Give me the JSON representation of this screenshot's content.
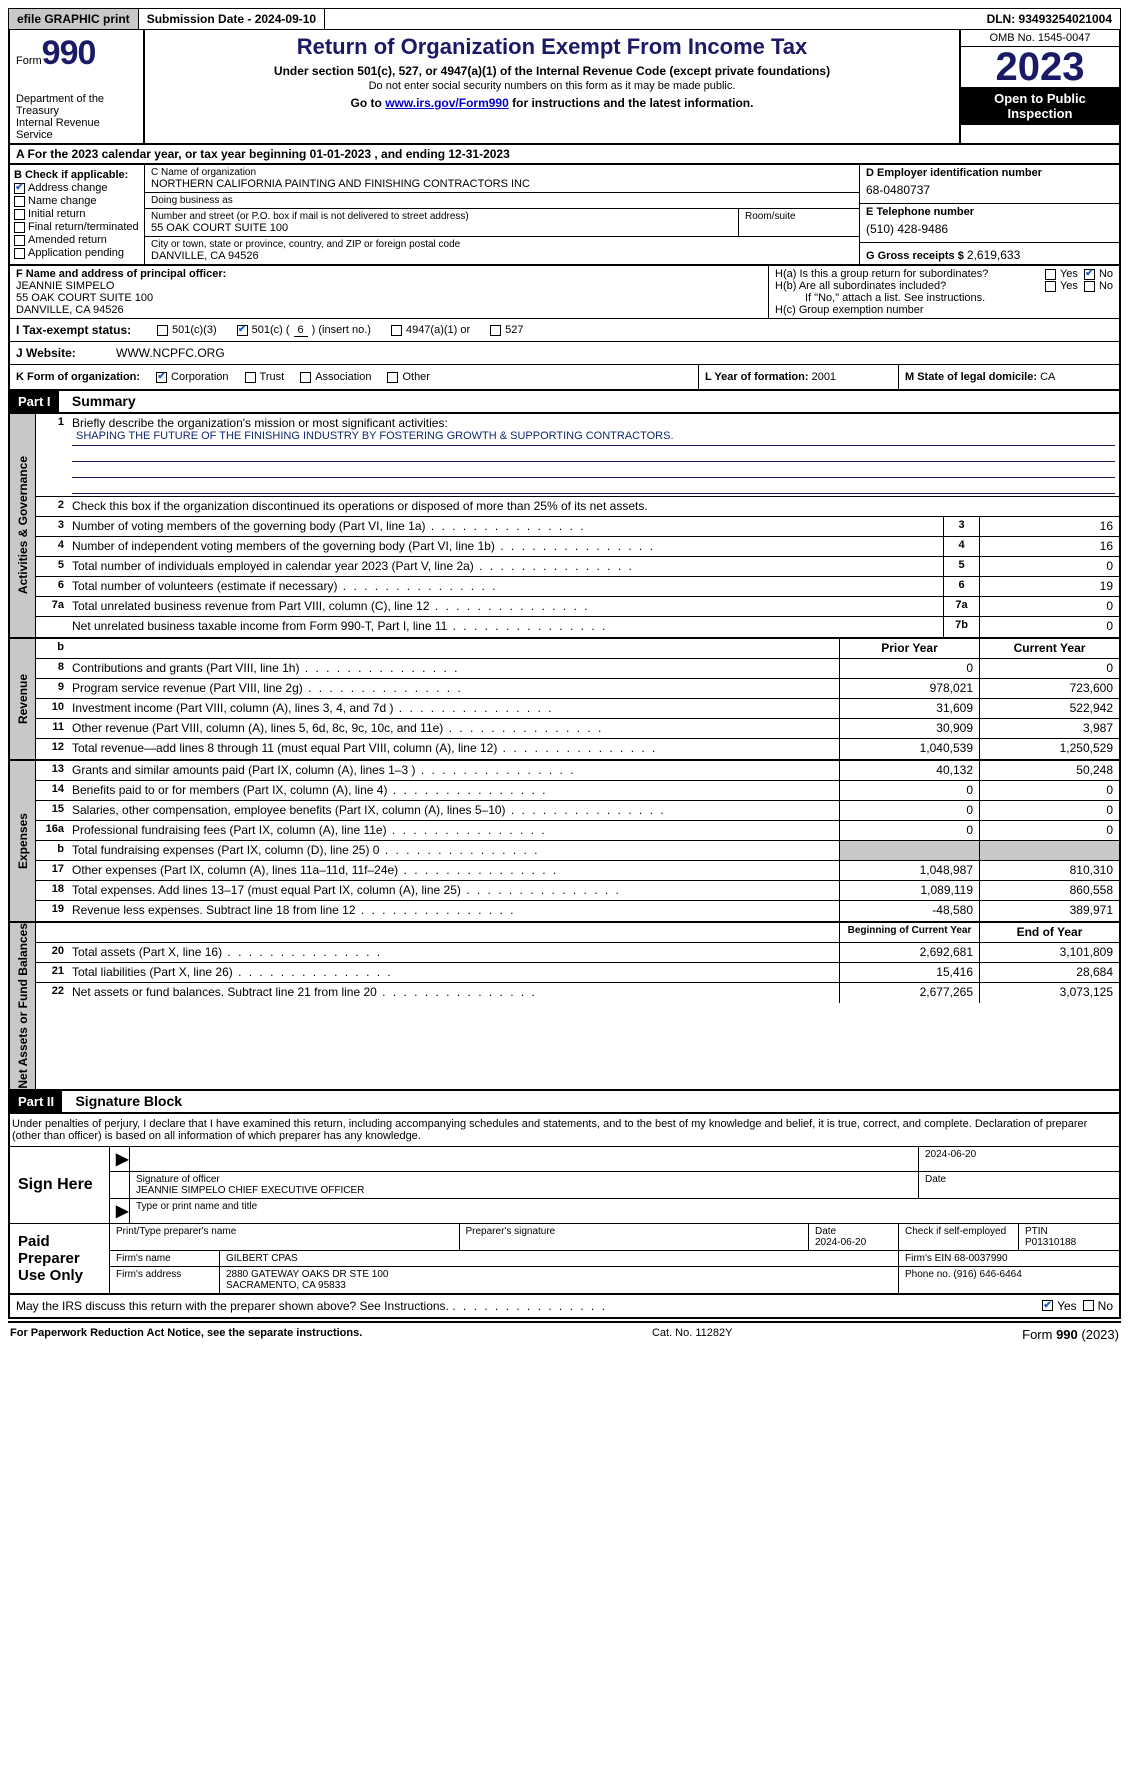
{
  "topbar": {
    "efile": "efile GRAPHIC print",
    "submission_label": "Submission Date - 2024-09-10",
    "dln": "DLN: 93493254021004"
  },
  "header": {
    "form_word": "Form",
    "form_number": "990",
    "dept": "Department of the Treasury",
    "irs": "Internal Revenue Service",
    "title": "Return of Organization Exempt From Income Tax",
    "subtitle": "Under section 501(c), 527, or 4947(a)(1) of the Internal Revenue Code (except private foundations)",
    "ssn_warn": "Do not enter social security numbers on this form as it may be made public.",
    "goto_pre": "Go to ",
    "goto_link": "www.irs.gov/Form990",
    "goto_post": " for instructions and the latest information.",
    "omb": "OMB No. 1545-0047",
    "year": "2023",
    "open": "Open to Public Inspection"
  },
  "rowA": "A  For the 2023 calendar year, or tax year beginning 01-01-2023    , and ending 12-31-2023",
  "boxB": {
    "header": "B Check if applicable:",
    "items": [
      {
        "label": "Address change",
        "checked": true
      },
      {
        "label": "Name change",
        "checked": false
      },
      {
        "label": "Initial return",
        "checked": false
      },
      {
        "label": "Final return/terminated",
        "checked": false
      },
      {
        "label": "Amended return",
        "checked": false
      },
      {
        "label": "Application pending",
        "checked": false
      }
    ]
  },
  "boxC": {
    "name_label": "C Name of organization",
    "name": "NORTHERN CALIFORNIA PAINTING AND FINISHING CONTRACTORS INC",
    "dba_label": "Doing business as",
    "dba": "",
    "street_label": "Number and street (or P.O. box if mail is not delivered to street address)",
    "street": "55 OAK COURT SUITE 100",
    "room_label": "Room/suite",
    "room": "",
    "city_label": "City or town, state or province, country, and ZIP or foreign postal code",
    "city": "DANVILLE, CA  94526"
  },
  "boxD": {
    "label": "D Employer identification number",
    "value": "68-0480737"
  },
  "boxE": {
    "label": "E Telephone number",
    "value": "(510) 428-9486"
  },
  "boxG": {
    "label": "G Gross receipts $",
    "value": "2,619,633"
  },
  "boxF": {
    "label": "F  Name and address of principal officer:",
    "name": "JEANNIE SIMPELO",
    "addr1": "55 OAK COURT SUITE 100",
    "addr2": "DANVILLE, CA  94526"
  },
  "boxH": {
    "a": "H(a)  Is this a group return for subordinates?",
    "b": "H(b)  Are all subordinates included?",
    "b_note": "If \"No,\" attach a list. See instructions.",
    "c": "H(c)  Group exemption number",
    "yes": "Yes",
    "no": "No"
  },
  "rowI": {
    "label": "I   Tax-exempt status:",
    "opt1": "501(c)(3)",
    "opt2_pre": "501(c) (",
    "opt2_num": "6",
    "opt2_post": ") (insert no.)",
    "opt3": "4947(a)(1) or",
    "opt4": "527"
  },
  "rowJ": {
    "label": "J   Website:",
    "value": "WWW.NCPFC.ORG"
  },
  "rowK": {
    "label": "K Form of organization:",
    "opts": [
      "Corporation",
      "Trust",
      "Association",
      "Other"
    ]
  },
  "rowL": {
    "label": "L Year of formation:",
    "value": "2001"
  },
  "rowM": {
    "label": "M State of legal domicile:",
    "value": "CA"
  },
  "part1": {
    "tag": "Part I",
    "title": "Summary"
  },
  "summary": {
    "mission_label": "Briefly describe the organization's mission or most significant activities:",
    "mission": "SHAPING THE FUTURE OF THE FINISHING INDUSTRY BY FOSTERING GROWTH & SUPPORTING CONTRACTORS.",
    "line2": "Check this box      if the organization discontinued its operations or disposed of more than 25% of its net assets.",
    "lines_gov": [
      {
        "n": "3",
        "t": "Number of voting members of the governing body (Part VI, line 1a)",
        "box": "3",
        "v": "16"
      },
      {
        "n": "4",
        "t": "Number of independent voting members of the governing body (Part VI, line 1b)",
        "box": "4",
        "v": "16"
      },
      {
        "n": "5",
        "t": "Total number of individuals employed in calendar year 2023 (Part V, line 2a)",
        "box": "5",
        "v": "0"
      },
      {
        "n": "6",
        "t": "Total number of volunteers (estimate if necessary)",
        "box": "6",
        "v": "19"
      },
      {
        "n": "7a",
        "t": "Total unrelated business revenue from Part VIII, column (C), line 12",
        "box": "7a",
        "v": "0"
      },
      {
        "n": "",
        "t": "Net unrelated business taxable income from Form 990-T, Part I, line 11",
        "box": "7b",
        "v": "0"
      }
    ],
    "col_prior": "Prior Year",
    "col_current": "Current Year",
    "revenue": [
      {
        "n": "8",
        "t": "Contributions and grants (Part VIII, line 1h)",
        "p": "0",
        "c": "0"
      },
      {
        "n": "9",
        "t": "Program service revenue (Part VIII, line 2g)",
        "p": "978,021",
        "c": "723,600"
      },
      {
        "n": "10",
        "t": "Investment income (Part VIII, column (A), lines 3, 4, and 7d )",
        "p": "31,609",
        "c": "522,942"
      },
      {
        "n": "11",
        "t": "Other revenue (Part VIII, column (A), lines 5, 6d, 8c, 9c, 10c, and 11e)",
        "p": "30,909",
        "c": "3,987"
      },
      {
        "n": "12",
        "t": "Total revenue—add lines 8 through 11 (must equal Part VIII, column (A), line 12)",
        "p": "1,040,539",
        "c": "1,250,529"
      }
    ],
    "expenses": [
      {
        "n": "13",
        "t": "Grants and similar amounts paid (Part IX, column (A), lines 1–3 )",
        "p": "40,132",
        "c": "50,248"
      },
      {
        "n": "14",
        "t": "Benefits paid to or for members (Part IX, column (A), line 4)",
        "p": "0",
        "c": "0"
      },
      {
        "n": "15",
        "t": "Salaries, other compensation, employee benefits (Part IX, column (A), lines 5–10)",
        "p": "0",
        "c": "0"
      },
      {
        "n": "16a",
        "t": "Professional fundraising fees (Part IX, column (A), line 11e)",
        "p": "0",
        "c": "0"
      },
      {
        "n": "b",
        "t": "Total fundraising expenses (Part IX, column (D), line 25) 0",
        "p": "",
        "c": "",
        "shade": true
      },
      {
        "n": "17",
        "t": "Other expenses (Part IX, column (A), lines 11a–11d, 11f–24e)",
        "p": "1,048,987",
        "c": "810,310"
      },
      {
        "n": "18",
        "t": "Total expenses. Add lines 13–17 (must equal Part IX, column (A), line 25)",
        "p": "1,089,119",
        "c": "860,558"
      },
      {
        "n": "19",
        "t": "Revenue less expenses. Subtract line 18 from line 12",
        "p": "-48,580",
        "c": "389,971"
      }
    ],
    "col_begin": "Beginning of Current Year",
    "col_end": "End of Year",
    "netassets": [
      {
        "n": "20",
        "t": "Total assets (Part X, line 16)",
        "p": "2,692,681",
        "c": "3,101,809"
      },
      {
        "n": "21",
        "t": "Total liabilities (Part X, line 26)",
        "p": "15,416",
        "c": "28,684"
      },
      {
        "n": "22",
        "t": "Net assets or fund balances. Subtract line 21 from line 20",
        "p": "2,677,265",
        "c": "3,073,125"
      }
    ]
  },
  "vlabels": {
    "gov": "Activities & Governance",
    "rev": "Revenue",
    "exp": "Expenses",
    "net": "Net Assets or Fund Balances"
  },
  "part2": {
    "tag": "Part II",
    "title": "Signature Block"
  },
  "penalties": "Under penalties of perjury, I declare that I have examined this return, including accompanying schedules and statements, and to the best of my knowledge and belief, it is true, correct, and complete. Declaration of preparer (other than officer) is based on all information of which preparer has any knowledge.",
  "sign": {
    "label": "Sign Here",
    "date": "2024-06-20",
    "sig_label": "Signature of officer",
    "officer": "JEANNIE SIMPELO  CHIEF EXECUTIVE OFFICER",
    "type_label": "Type or print name and title",
    "date_label": "Date"
  },
  "preparer": {
    "label": "Paid Preparer Use Only",
    "print_label": "Print/Type preparer's name",
    "sig_label": "Preparer's signature",
    "date_label": "Date",
    "date": "2024-06-20",
    "check_label": "Check         if self-employed",
    "ptin_label": "PTIN",
    "ptin": "P01310188",
    "firm_name_label": "Firm's name",
    "firm_name": "GILBERT CPAS",
    "firm_ein_label": "Firm's EIN",
    "firm_ein": "68-0037990",
    "firm_addr_label": "Firm's address",
    "firm_addr1": "2880 GATEWAY OAKS DR STE 100",
    "firm_addr2": "SACRAMENTO, CA  95833",
    "phone_label": "Phone no.",
    "phone": "(916) 646-6464"
  },
  "may_discuss": "May the IRS discuss this return with the preparer shown above? See Instructions.",
  "footer": {
    "left": "For Paperwork Reduction Act Notice, see the separate instructions.",
    "mid": "Cat. No. 11282Y",
    "right_pre": "Form ",
    "right_form": "990",
    "right_post": " (2023)"
  }
}
